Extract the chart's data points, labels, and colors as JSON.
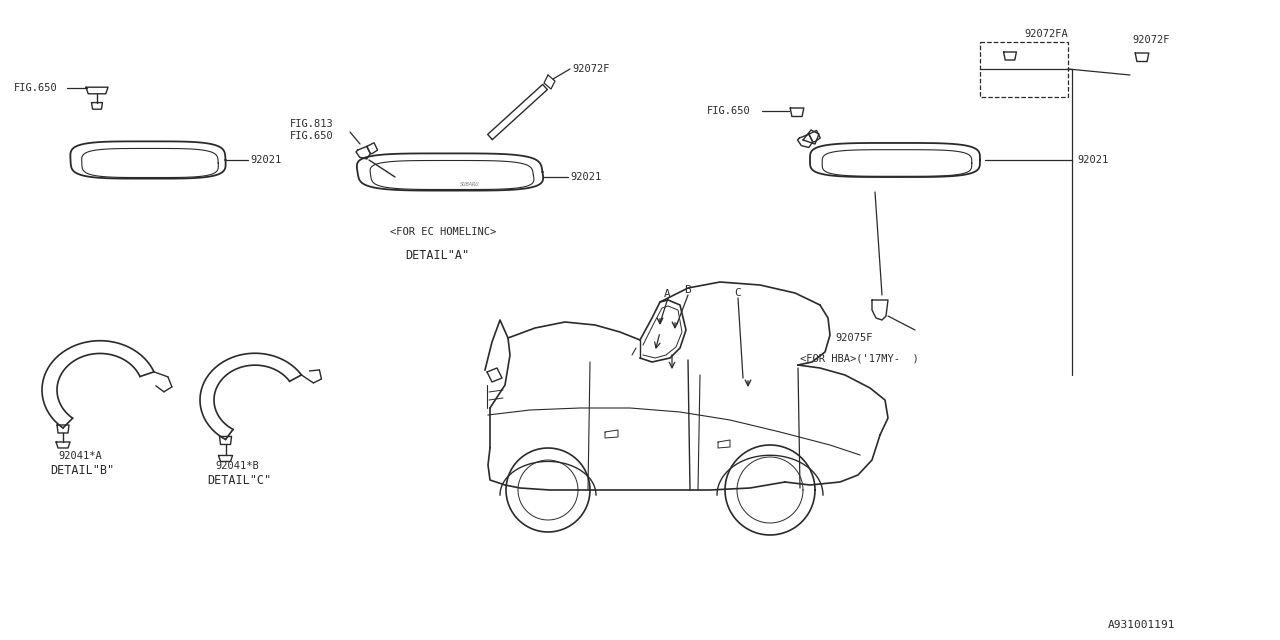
{
  "bg_color": "#ffffff",
  "line_color": "#2a2a2a",
  "fig_width": 12.8,
  "fig_height": 6.4,
  "dpi": 100,
  "part_id": "A931001191",
  "texts": {
    "fig650_1": "FIG.650",
    "fig650_2": "FIG.650",
    "fig650_3": "FIG.650",
    "fig813": "FIG.813",
    "p92021_1": "92021",
    "p92021_2": "92021",
    "p92021_3": "92021",
    "p92041a": "92041*A",
    "p92041b": "92041*B",
    "p92072f_1": "92072F",
    "p92072f_2": "92072F",
    "p92072fa": "92072FA",
    "p92075f": "92075F",
    "detail_a": "DETAIL\"A\"",
    "detail_b": "DETAIL\"B\"",
    "detail_c": "DETAIL\"C\"",
    "for_ec": "<FOR EC HOMELINC>",
    "for_hba": "<FOR HBA>('17MY-  )"
  }
}
